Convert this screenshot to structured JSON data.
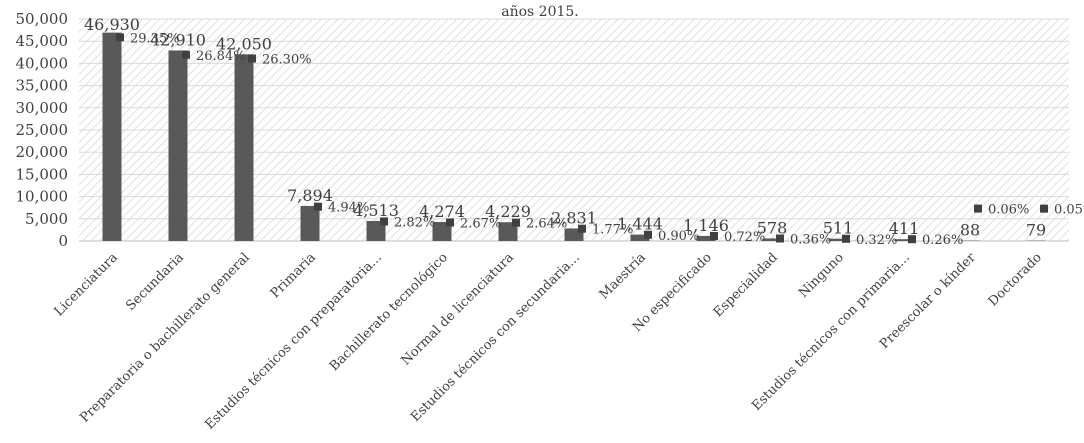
{
  "chart_data": {
    "type": "bar",
    "title": "años 2015.",
    "xlabel": "",
    "ylabel": "",
    "ylim": [
      0,
      50000
    ],
    "yticks": [
      0,
      5000,
      10000,
      15000,
      20000,
      25000,
      30000,
      35000,
      40000,
      45000,
      50000
    ],
    "ytick_labels": [
      "0",
      "5,000",
      "10,000",
      "15,000",
      "20,000",
      "25,000",
      "30,000",
      "35,000",
      "40,000",
      "45,000",
      "50,000"
    ],
    "grid": true,
    "categories": [
      "Licenciatura",
      "Secundaria",
      "Preparatoria o bachillerato general",
      "Primaria",
      "Estudios técnicos con preparatoria...",
      "Bachillerato tecnológico",
      "Normal de licenciatura",
      "Estudios técnicos con secundaria...",
      "Maestría",
      "No especificado",
      "Especialidad",
      "Ninguno",
      "Estudios técnicos con primaria...",
      "Preescolar o kínder",
      "Doctorado"
    ],
    "series": [
      {
        "type": "bar",
        "values": [
          46930,
          42910,
          42050,
          7894,
          4513,
          4274,
          4229,
          2831,
          1444,
          1146,
          578,
          511,
          411,
          88,
          79
        ],
        "labels": [
          "46,930",
          "42,910",
          "42,050",
          "7,894",
          "4,513",
          "4,274",
          "4,229",
          "2,831",
          "1,444",
          "1,146",
          "578",
          "511",
          "411",
          "88",
          "79"
        ],
        "color": "#595959"
      },
      {
        "type": "scatter",
        "values": [
          29.35,
          26.84,
          26.3,
          4.94,
          2.82,
          2.67,
          2.64,
          1.77,
          0.9,
          0.72,
          0.36,
          0.32,
          0.26,
          0.06,
          0.05
        ],
        "labels": [
          "29.35%",
          "26.84%",
          "26.30%",
          "4.94%",
          "2.82%",
          "2.67%",
          "2.64%",
          "1.77%",
          "0.90%",
          "0.72%",
          "0.36%",
          "0.32%",
          "0.26%",
          "0.06%",
          "0.05%"
        ],
        "color": "#404040"
      }
    ]
  }
}
